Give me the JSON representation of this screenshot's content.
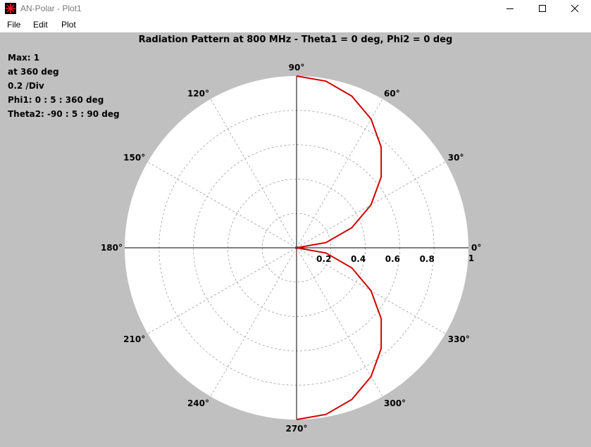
{
  "window": {
    "title": "AN-Polar - Plot1",
    "controls": [
      "minimize-icon",
      "maximize-icon",
      "close-icon"
    ]
  },
  "menu": [
    {
      "label": "File"
    },
    {
      "label": "Edit"
    },
    {
      "label": "Plot"
    }
  ],
  "info": {
    "max": "Max: 1",
    "at": "at 360 deg",
    "div": "0.2 /Div",
    "phi1": "Phi1: 0 : 5 : 360 deg",
    "theta2": "Theta2: -90 : 5 : 90 deg"
  },
  "chart_data": {
    "type": "polar-line",
    "title": "Radiation Pattern at 800 MHz - Theta1 = 0 deg, Phi2 = 0 deg",
    "radial_range": [
      0,
      1
    ],
    "radial_ticks": [
      "0.2",
      "0.4",
      "0.6",
      "0.8",
      "1"
    ],
    "angle_labels": [
      "0°",
      "30°",
      "60°",
      "90°",
      "120°",
      "150°",
      "180°",
      "210°",
      "240°",
      "270°",
      "300°",
      "330°"
    ],
    "grid": true,
    "colors": {
      "series": "#d00000",
      "grid": "#a0a0a0",
      "disc": "#ffffff"
    },
    "series": [
      {
        "angles_deg": [
          90,
          80,
          70,
          60,
          50,
          40,
          30,
          20,
          10,
          0,
          350,
          340,
          330,
          320,
          310,
          300,
          290,
          280,
          270
        ],
        "r": [
          1.0,
          0.985,
          0.94,
          0.866,
          0.766,
          0.643,
          0.5,
          0.342,
          0.174,
          0.0,
          0.174,
          0.342,
          0.5,
          0.643,
          0.766,
          0.866,
          0.94,
          0.985,
          1.0
        ]
      }
    ]
  }
}
